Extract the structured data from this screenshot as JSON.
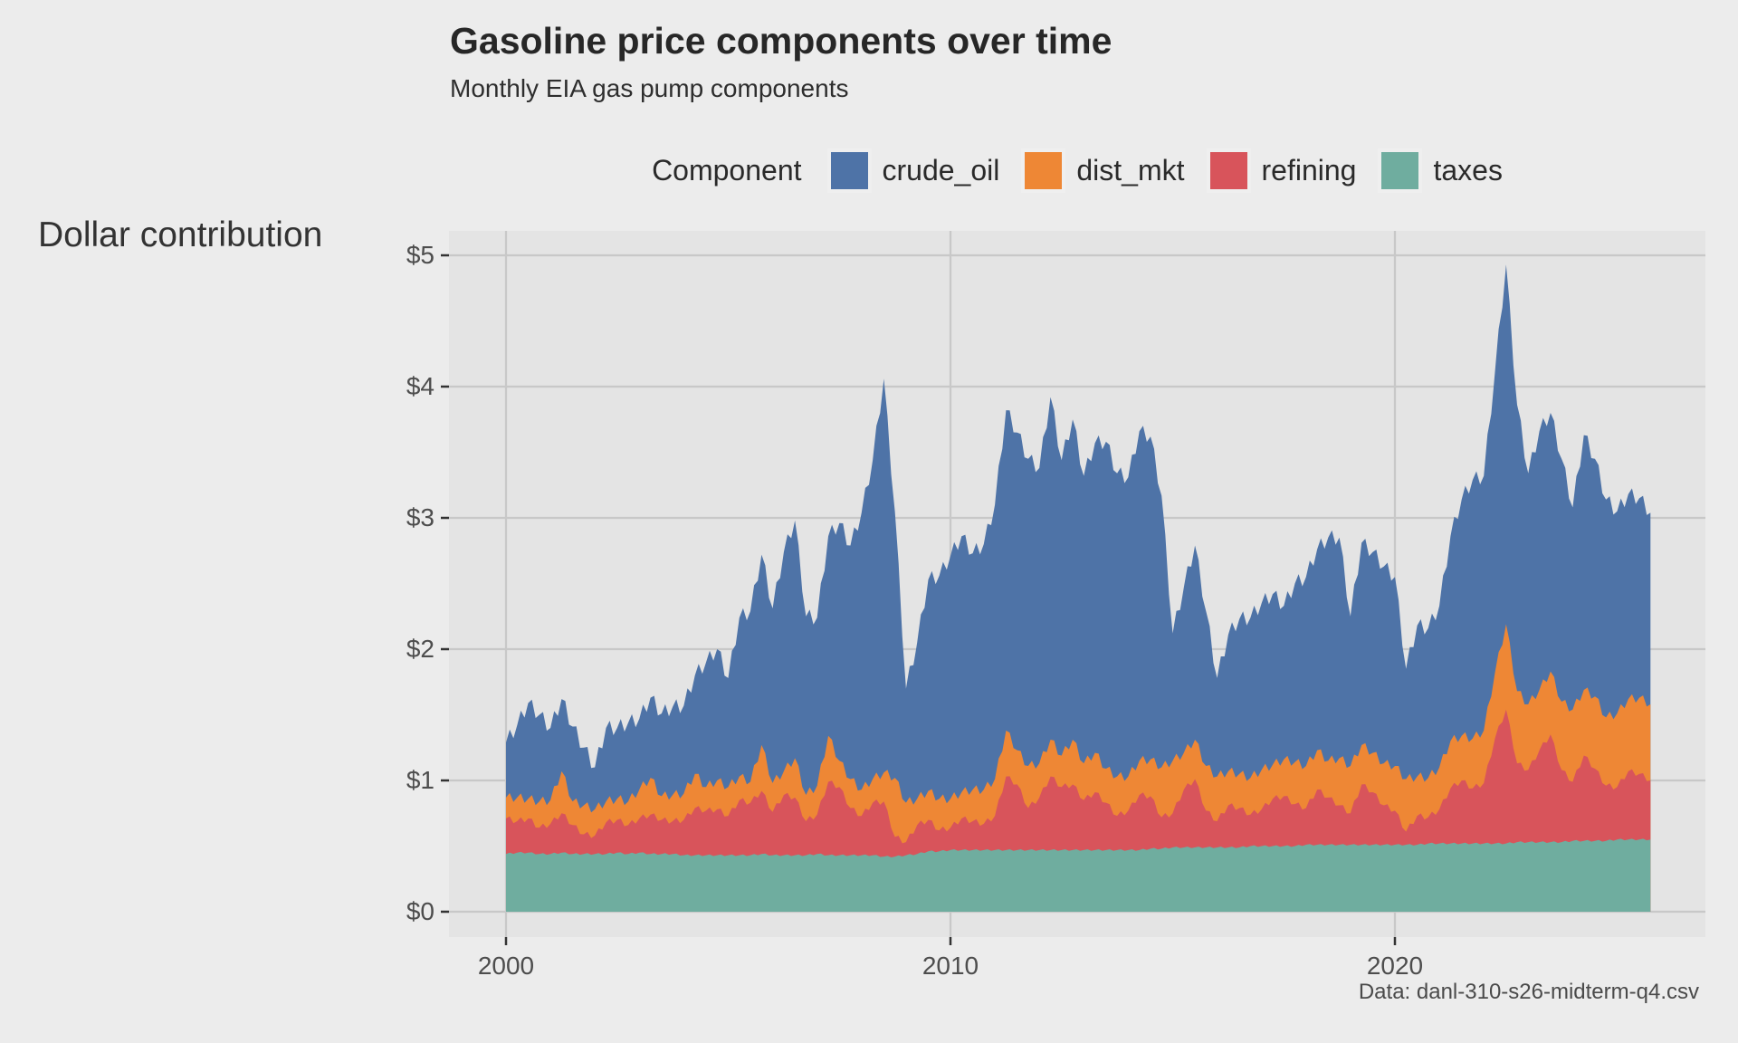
{
  "title": "Gasoline price components over time",
  "subtitle": "Monthly EIA gas pump components",
  "caption": "Data: danl-310-s26-midterm-q4.csv",
  "y_axis_title": "Dollar contribution",
  "legend": {
    "title": "Component",
    "items": [
      {
        "label": "crude_oil",
        "color": "#4E73A7"
      },
      {
        "label": "dist_mkt",
        "color": "#EE8735"
      },
      {
        "label": "refining",
        "color": "#D8545B"
      },
      {
        "label": "taxes",
        "color": "#6FAD9F"
      }
    ]
  },
  "colors": {
    "background": "#ECECEC",
    "panel": "#E4E4E4",
    "gridline": "#C8C8C8",
    "tick": "#333333",
    "axis_text": "#4d4d4d",
    "crude_oil": "#4E73A7",
    "dist_mkt": "#EE8735",
    "refining": "#D8545B",
    "taxes": "#6FAD9F"
  },
  "chart_data": {
    "type": "area",
    "stacked": true,
    "stack_order_bottom_to_top": [
      "taxes",
      "refining",
      "dist_mkt",
      "crude_oil"
    ],
    "title": "Gasoline price components over time",
    "subtitle": "Monthly EIA gas pump components",
    "xlabel": "",
    "ylabel": "Dollar contribution",
    "xlim": [
      1998.7,
      2027.0
    ],
    "ylim": [
      0,
      5
    ],
    "x_ticks": [
      2000,
      2010,
      2020
    ],
    "x_tick_labels": [
      "2000",
      "2010",
      "2020"
    ],
    "y_ticks": [
      0,
      1,
      2,
      3,
      4,
      5
    ],
    "y_tick_labels": [
      "$0",
      "$1",
      "$2",
      "$3",
      "$4",
      "$5"
    ],
    "grid": "major-only",
    "legend_position": "top-center",
    "x_unit": "decimal year, quarterly samples of monthly data",
    "x": [
      2000.0,
      2000.25,
      2000.5,
      2000.75,
      2001.0,
      2001.25,
      2001.5,
      2001.75,
      2002.0,
      2002.25,
      2002.5,
      2002.75,
      2003.0,
      2003.25,
      2003.5,
      2003.75,
      2004.0,
      2004.25,
      2004.5,
      2004.75,
      2005.0,
      2005.25,
      2005.5,
      2005.75,
      2006.0,
      2006.25,
      2006.5,
      2006.75,
      2007.0,
      2007.25,
      2007.5,
      2007.75,
      2008.0,
      2008.25,
      2008.5,
      2008.75,
      2009.0,
      2009.25,
      2009.5,
      2009.75,
      2010.0,
      2010.25,
      2010.5,
      2010.75,
      2011.0,
      2011.25,
      2011.5,
      2011.75,
      2012.0,
      2012.25,
      2012.5,
      2012.75,
      2013.0,
      2013.25,
      2013.5,
      2013.75,
      2014.0,
      2014.25,
      2014.5,
      2014.75,
      2015.0,
      2015.25,
      2015.5,
      2015.75,
      2016.0,
      2016.25,
      2016.5,
      2016.75,
      2017.0,
      2017.25,
      2017.5,
      2017.75,
      2018.0,
      2018.25,
      2018.5,
      2018.75,
      2019.0,
      2019.25,
      2019.5,
      2019.75,
      2020.0,
      2020.25,
      2020.5,
      2020.75,
      2021.0,
      2021.25,
      2021.5,
      2021.75,
      2022.0,
      2022.25,
      2022.5,
      2022.75,
      2023.0,
      2023.25,
      2023.5,
      2023.75,
      2024.0,
      2024.25,
      2024.5,
      2024.75,
      2025.0,
      2025.25,
      2025.5,
      2025.75
    ],
    "series": [
      {
        "name": "taxes",
        "color": "#6FAD9F",
        "values": [
          0.44,
          0.45,
          0.45,
          0.44,
          0.44,
          0.45,
          0.44,
          0.44,
          0.44,
          0.44,
          0.45,
          0.44,
          0.45,
          0.44,
          0.44,
          0.44,
          0.43,
          0.43,
          0.43,
          0.43,
          0.43,
          0.43,
          0.43,
          0.44,
          0.43,
          0.43,
          0.43,
          0.43,
          0.44,
          0.43,
          0.43,
          0.43,
          0.43,
          0.43,
          0.42,
          0.42,
          0.43,
          0.44,
          0.46,
          0.46,
          0.47,
          0.47,
          0.47,
          0.47,
          0.47,
          0.47,
          0.47,
          0.47,
          0.47,
          0.47,
          0.47,
          0.47,
          0.47,
          0.47,
          0.47,
          0.47,
          0.47,
          0.47,
          0.48,
          0.48,
          0.49,
          0.49,
          0.49,
          0.49,
          0.49,
          0.49,
          0.49,
          0.5,
          0.5,
          0.5,
          0.5,
          0.5,
          0.51,
          0.51,
          0.51,
          0.51,
          0.51,
          0.51,
          0.51,
          0.51,
          0.51,
          0.51,
          0.51,
          0.52,
          0.52,
          0.52,
          0.52,
          0.52,
          0.52,
          0.52,
          0.52,
          0.53,
          0.53,
          0.53,
          0.53,
          0.53,
          0.54,
          0.54,
          0.54,
          0.54,
          0.55,
          0.55,
          0.55,
          0.55
        ]
      },
      {
        "name": "refining",
        "color": "#D8545B",
        "values": [
          0.27,
          0.24,
          0.26,
          0.2,
          0.23,
          0.3,
          0.22,
          0.15,
          0.14,
          0.24,
          0.25,
          0.22,
          0.26,
          0.3,
          0.26,
          0.25,
          0.27,
          0.36,
          0.34,
          0.35,
          0.3,
          0.42,
          0.4,
          0.48,
          0.33,
          0.46,
          0.44,
          0.26,
          0.3,
          0.56,
          0.52,
          0.36,
          0.3,
          0.4,
          0.42,
          0.15,
          0.1,
          0.22,
          0.24,
          0.16,
          0.17,
          0.24,
          0.22,
          0.2,
          0.26,
          0.56,
          0.5,
          0.32,
          0.4,
          0.56,
          0.48,
          0.5,
          0.38,
          0.44,
          0.36,
          0.26,
          0.3,
          0.42,
          0.4,
          0.24,
          0.26,
          0.44,
          0.52,
          0.28,
          0.2,
          0.32,
          0.3,
          0.24,
          0.28,
          0.36,
          0.38,
          0.32,
          0.28,
          0.42,
          0.36,
          0.3,
          0.24,
          0.46,
          0.4,
          0.3,
          0.26,
          0.1,
          0.22,
          0.2,
          0.26,
          0.42,
          0.48,
          0.42,
          0.46,
          0.8,
          1.02,
          0.6,
          0.55,
          0.7,
          0.82,
          0.55,
          0.45,
          0.65,
          0.55,
          0.42,
          0.4,
          0.52,
          0.5,
          0.45
        ]
      },
      {
        "name": "dist_mkt",
        "color": "#EE8735",
        "values": [
          0.16,
          0.18,
          0.15,
          0.2,
          0.18,
          0.32,
          0.18,
          0.22,
          0.2,
          0.16,
          0.16,
          0.18,
          0.22,
          0.28,
          0.18,
          0.2,
          0.2,
          0.26,
          0.18,
          0.22,
          0.22,
          0.18,
          0.16,
          0.35,
          0.22,
          0.18,
          0.3,
          0.2,
          0.22,
          0.35,
          0.2,
          0.22,
          0.2,
          0.18,
          0.22,
          0.45,
          0.3,
          0.2,
          0.22,
          0.24,
          0.22,
          0.2,
          0.24,
          0.26,
          0.28,
          0.35,
          0.26,
          0.32,
          0.26,
          0.28,
          0.24,
          0.34,
          0.28,
          0.3,
          0.26,
          0.3,
          0.26,
          0.26,
          0.28,
          0.38,
          0.4,
          0.28,
          0.3,
          0.34,
          0.34,
          0.26,
          0.26,
          0.28,
          0.3,
          0.26,
          0.28,
          0.32,
          0.32,
          0.3,
          0.28,
          0.36,
          0.36,
          0.3,
          0.3,
          0.32,
          0.34,
          0.4,
          0.3,
          0.3,
          0.32,
          0.36,
          0.34,
          0.38,
          0.4,
          0.5,
          0.65,
          0.55,
          0.5,
          0.46,
          0.48,
          0.52,
          0.55,
          0.5,
          0.55,
          0.52,
          0.56,
          0.55,
          0.58,
          0.58
        ]
      },
      {
        "name": "crude_oil",
        "color": "#4E73A7",
        "values": [
          0.42,
          0.55,
          0.73,
          0.66,
          0.55,
          0.55,
          0.57,
          0.44,
          0.32,
          0.56,
          0.54,
          0.6,
          0.54,
          0.61,
          0.63,
          0.67,
          0.67,
          0.75,
          0.95,
          1.0,
          0.83,
          1.21,
          1.3,
          1.45,
          1.33,
          1.67,
          1.81,
          1.36,
          1.28,
          1.52,
          1.81,
          1.78,
          2.11,
          2.43,
          3.0,
          2.03,
          0.87,
          1.19,
          1.61,
          1.7,
          1.85,
          1.95,
          1.8,
          1.87,
          2.09,
          2.44,
          2.42,
          2.34,
          2.25,
          2.61,
          2.25,
          2.44,
          2.19,
          2.36,
          2.49,
          2.31,
          2.28,
          2.51,
          2.46,
          2.07,
          0.97,
          1.26,
          1.48,
          1.18,
          0.75,
          1.04,
          1.18,
          1.22,
          1.27,
          1.3,
          1.17,
          1.36,
          1.44,
          1.53,
          1.7,
          1.68,
          1.14,
          1.54,
          1.53,
          1.5,
          1.44,
          0.84,
          1.15,
          1.14,
          1.23,
          1.56,
          1.8,
          1.97,
          1.94,
          2.29,
          2.74,
          2.18,
          1.76,
          1.97,
          1.97,
          1.85,
          1.54,
          1.94,
          1.81,
          1.66,
          1.54,
          1.56,
          1.52,
          1.46
        ]
      }
    ]
  }
}
